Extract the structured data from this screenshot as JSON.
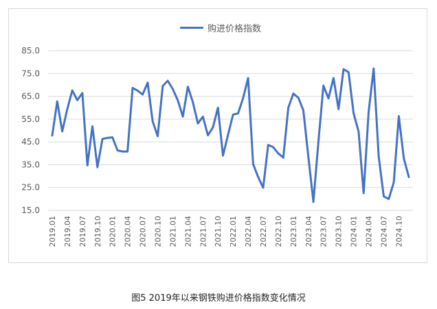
{
  "chart_data": {
    "type": "line",
    "title": "",
    "xlabel": "",
    "ylabel": "",
    "ylim": [
      15,
      85
    ],
    "yticks": [
      "85.0",
      "75.0",
      "65.0",
      "55.0",
      "45.0",
      "35.0",
      "25.0",
      "15.0"
    ],
    "grid": true,
    "legend_position": "top-center",
    "color": "#4472c4",
    "x_tick_labels": [
      "2019.01",
      "2019.04",
      "2019.07",
      "2019.10",
      "2020.01",
      "2020.04",
      "2020.07",
      "2020.10",
      "2021.01",
      "2021.04",
      "2021.07",
      "2021.10",
      "2022.01",
      "2022.04",
      "2022.07",
      "2022.10",
      "2023.01",
      "2023.04",
      "2023.07",
      "2023.10",
      "2024.01",
      "2024.04",
      "2024.07",
      "2024.10"
    ],
    "x": [
      "2019.01",
      "2019.02",
      "2019.03",
      "2019.04",
      "2019.05",
      "2019.06",
      "2019.07",
      "2019.08",
      "2019.09",
      "2019.10",
      "2019.11",
      "2019.12",
      "2020.01",
      "2020.02",
      "2020.03",
      "2020.04",
      "2020.05",
      "2020.06",
      "2020.07",
      "2020.08",
      "2020.09",
      "2020.10",
      "2020.11",
      "2020.12",
      "2021.01",
      "2021.02",
      "2021.03",
      "2021.04",
      "2021.05",
      "2021.06",
      "2021.07",
      "2021.08",
      "2021.09",
      "2021.10",
      "2021.11",
      "2021.12",
      "2022.01",
      "2022.02",
      "2022.03",
      "2022.04",
      "2022.05",
      "2022.06",
      "2022.07",
      "2022.08",
      "2022.09",
      "2022.10",
      "2022.11",
      "2022.12",
      "2023.01",
      "2023.02",
      "2023.03",
      "2023.04",
      "2023.05",
      "2023.06",
      "2023.07",
      "2023.08",
      "2023.09",
      "2023.10",
      "2023.11",
      "2023.12",
      "2024.01",
      "2024.02",
      "2024.03",
      "2024.04",
      "2024.05",
      "2024.06",
      "2024.07",
      "2024.08",
      "2024.09",
      "2024.10",
      "2024.11",
      "2024.12"
    ],
    "series": [
      {
        "name": "购进价格指数",
        "values": [
          47.8,
          62.8,
          49.6,
          59.4,
          67.6,
          63.3,
          66.4,
          34.7,
          51.9,
          33.9,
          46.3,
          46.8,
          47.0,
          41.3,
          40.8,
          40.8,
          68.7,
          67.5,
          65.8,
          71.0,
          54.0,
          47.5,
          69.5,
          71.8,
          68.2,
          63.3,
          56.1,
          69.2,
          62.4,
          53.1,
          56.1,
          47.9,
          51.4,
          60.0,
          39.0,
          48.0,
          57.0,
          57.5,
          64.2,
          73.0,
          35.3,
          29.6,
          24.9,
          43.7,
          42.7,
          40.0,
          38.1,
          60.0,
          66.2,
          64.4,
          58.8,
          38.4,
          18.7,
          45.0,
          69.7,
          64.1,
          73.0,
          59.4,
          76.9,
          75.6,
          57.6,
          49.5,
          22.5,
          58.2,
          77.2,
          38.7,
          21.1,
          20.0,
          27.3,
          56.3,
          37.8,
          29.6
        ]
      }
    ]
  },
  "caption": "图5 2019年以来钢铁购进价格指数变化情况"
}
